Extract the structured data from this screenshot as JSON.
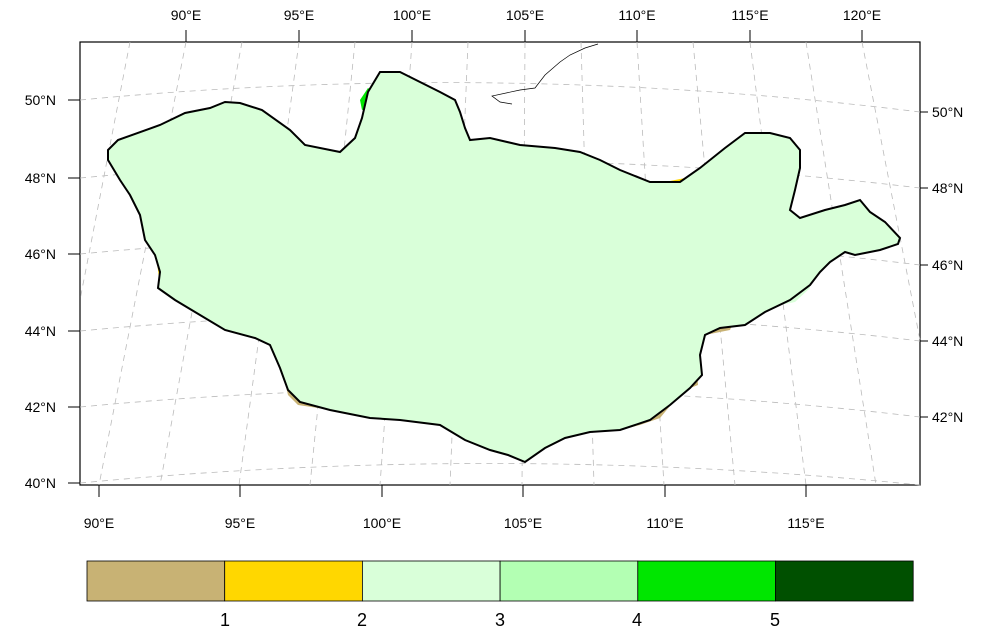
{
  "map": {
    "top_lon_labels": [
      "90°E",
      "95°E",
      "100°E",
      "105°E",
      "110°E",
      "115°E",
      "120°E"
    ],
    "bottom_lon_labels": [
      "90°E",
      "95°E",
      "100°E",
      "105°E",
      "110°E",
      "115°E"
    ],
    "left_lat_labels": [
      "50°N",
      "48°N",
      "46°N",
      "44°N",
      "42°N",
      "40°N"
    ],
    "right_lat_labels": [
      "50°N",
      "48°N",
      "46°N",
      "44°N",
      "42°N"
    ]
  },
  "legend": {
    "colors": [
      "#c8b274",
      "#ffd700",
      "#d9ffd9",
      "#b3ffb3",
      "#00e600",
      "#005000"
    ],
    "labels": [
      "1",
      "2",
      "3",
      "4",
      "5"
    ]
  },
  "colors": {
    "class1": "#c8b274",
    "class2": "#ffd700",
    "class3": "#d9ffd9",
    "class4": "#b3ffb3",
    "class5": "#00e600",
    "class6": "#005000"
  }
}
